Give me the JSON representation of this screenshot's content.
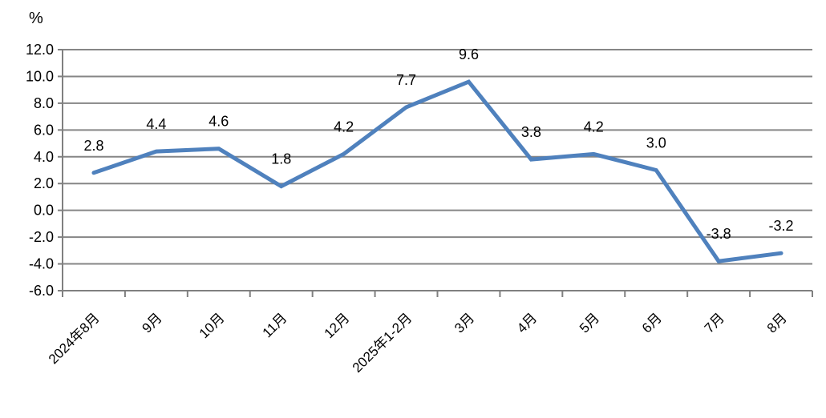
{
  "unit_label": "%",
  "chart_data": {
    "type": "line",
    "title": "",
    "xlabel": "",
    "ylabel": "%",
    "categories": [
      "2024年8月",
      "9月",
      "10月",
      "11月",
      "12月",
      "2025年1-2月",
      "3月",
      "4月",
      "5月",
      "6月",
      "7月",
      "8月"
    ],
    "values": [
      2.8,
      4.4,
      4.6,
      1.8,
      4.2,
      7.7,
      9.6,
      3.8,
      4.2,
      3.0,
      -3.8,
      -3.2
    ],
    "data_labels": [
      "2.8",
      "4.4",
      "4.6",
      "1.8",
      "4.2",
      "7.7",
      "9.6",
      "3.8",
      "4.2",
      "3.0",
      "-3.8",
      "-3.2"
    ],
    "ylim": [
      -6.0,
      12.0
    ],
    "y_tick_step": 2.0,
    "y_ticks": [
      "12.0",
      "10.0",
      "8.0",
      "6.0",
      "4.0",
      "2.0",
      "0.0",
      "-2.0",
      "-4.0",
      "-6.0"
    ],
    "grid": true,
    "legend_position": "none",
    "markers": "none",
    "x_label_rotation_deg": -45,
    "line_color": "#4F81BD",
    "grid_color": "#868686",
    "axis_color": "#808080",
    "text_color": "#000000"
  }
}
